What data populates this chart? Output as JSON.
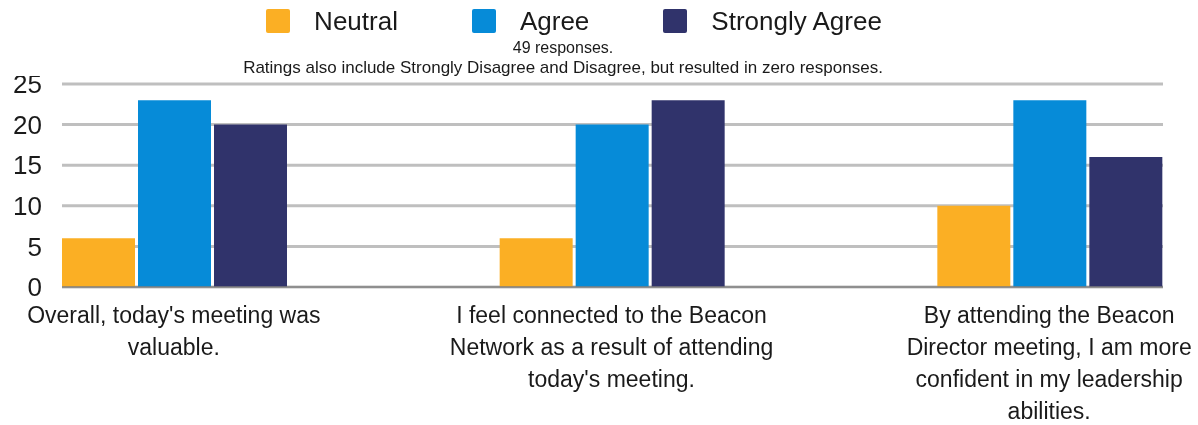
{
  "chart_data": {
    "type": "bar",
    "subtitle": "49 responses.",
    "annotations": [
      "Ratings also include Strongly Disagree and Disagree, but resulted in zero responses."
    ],
    "categories": [
      "Overall, today's meeting was valuable.",
      "I feel connected to the Beacon Network as a result of attending today's meeting.",
      "By attending the Beacon Director meeting, I am more confident in my leadership abilities."
    ],
    "series": [
      {
        "name": "Neutral",
        "color": "#fbaf24",
        "values": [
          6,
          6,
          10
        ]
      },
      {
        "name": "Agree",
        "color": "#068bd8",
        "values": [
          23,
          20,
          23
        ]
      },
      {
        "name": "Strongly Agree",
        "color": "#30336b",
        "values": [
          20,
          23,
          16
        ]
      }
    ],
    "ylim": [
      0,
      25
    ],
    "yticks": [
      0,
      5,
      10,
      15,
      20,
      25
    ],
    "grid": "y",
    "legend": "top"
  }
}
